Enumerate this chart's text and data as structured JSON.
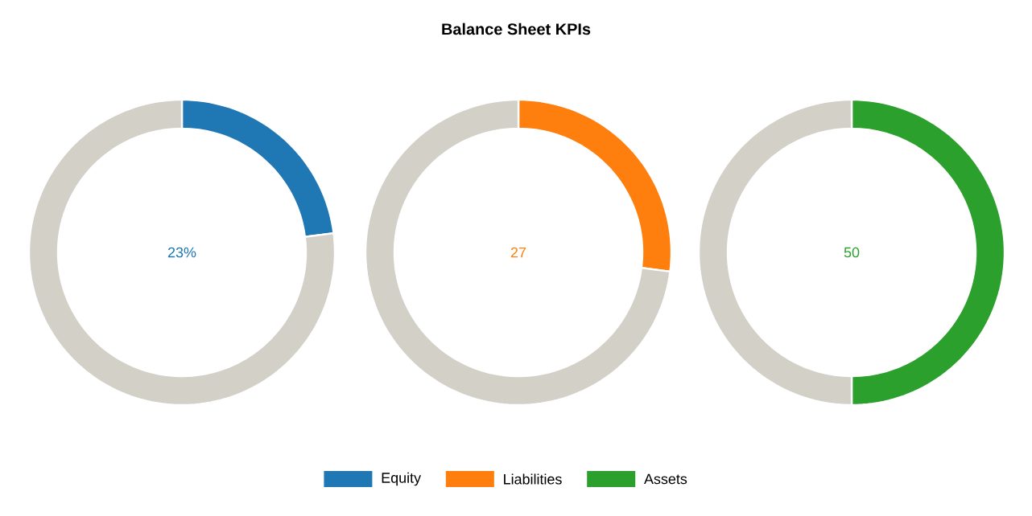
{
  "chart_data": [
    {
      "type": "donut",
      "categories": [
        "Equity",
        null
      ],
      "values": [
        23,
        77
      ],
      "colors": [
        "#1f77b4",
        "#d3d0c8"
      ],
      "annotations": [
        "23%"
      ],
      "legend": "bottom"
    },
    {
      "type": "donut",
      "title": "Balance Sheet KPIs",
      "categories": [
        "Liabilities",
        null
      ],
      "values": [
        27,
        73
      ],
      "colors": [
        "#ff7f0e",
        "#d3d0c8"
      ],
      "annotations": [
        "27"
      ],
      "legend": "bottom"
    },
    {
      "type": "donut",
      "categories": [
        "Assets",
        null
      ],
      "values": [
        50,
        50
      ],
      "colors": [
        "#2ca02c",
        "#d3d0c8"
      ],
      "annotations": [
        "50"
      ],
      "legend": "bottom"
    }
  ]
}
